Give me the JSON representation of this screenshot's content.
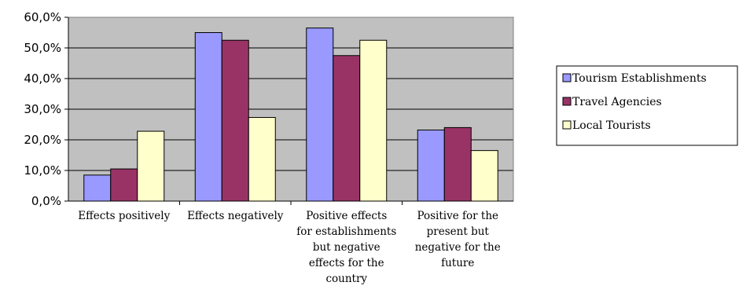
{
  "chart_data": {
    "type": "bar",
    "categories": [
      [
        "Effects positively"
      ],
      [
        "Effects negatively"
      ],
      [
        "Positive effects",
        "for establishments",
        "but negative",
        "effects for the",
        "country"
      ],
      [
        "Positive for the",
        "present but",
        "negative for the",
        "future"
      ]
    ],
    "series": [
      {
        "name": "Tourism Establishments",
        "values": [
          8.5,
          55.0,
          56.5,
          23.2
        ],
        "color": "#9999ff"
      },
      {
        "name": "Travel Agencies",
        "values": [
          10.5,
          52.5,
          47.5,
          24.0
        ],
        "color": "#993366"
      },
      {
        "name": "Local Tourists",
        "values": [
          22.8,
          27.3,
          52.5,
          16.5
        ],
        "color": "#ffffcc"
      }
    ],
    "ylim": [
      0,
      60
    ],
    "yticks": [
      "0,0%",
      "10,0%",
      "20,0%",
      "30,0%",
      "40,0%",
      "50,0%",
      "60,0%"
    ],
    "plot_background": "#c0c0c0",
    "grid": true,
    "legend_position": "right"
  }
}
